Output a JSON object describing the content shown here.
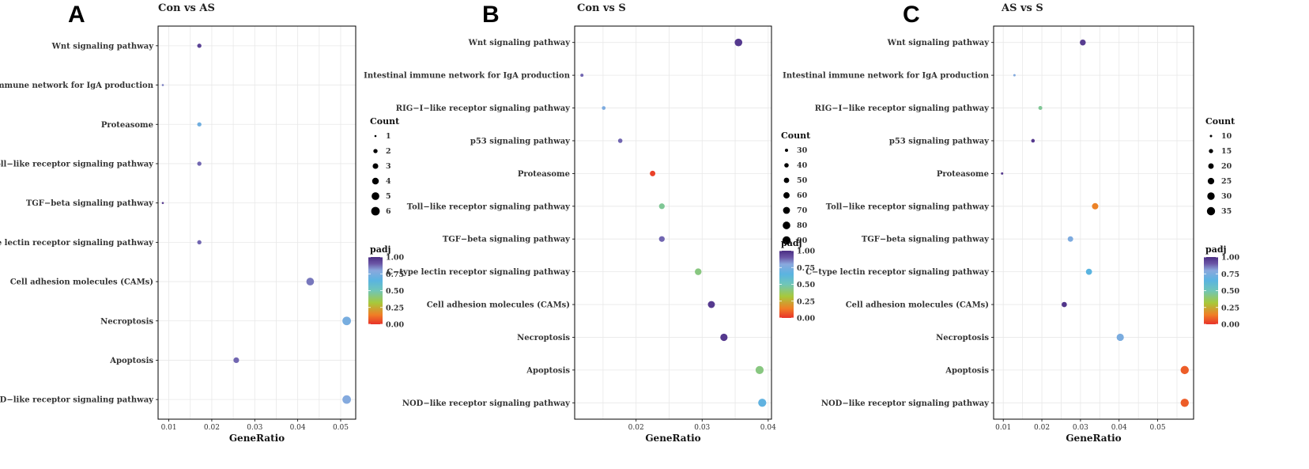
{
  "colors": {
    "padj_scale": [
      "#e8322a",
      "#f07e26",
      "#a7c93b",
      "#70c6b8",
      "#5ab4e0",
      "#8aa8de",
      "#6b56a6",
      "#4b2d83"
    ],
    "grid": "#e8e8e8",
    "point_low": "#e8322a",
    "point_high": "#4b2d83"
  },
  "chart_data": [
    {
      "type": "scatter",
      "panel_label": "A",
      "title": "Con vs AS",
      "xlabel": "GeneRatio",
      "ylabel": "",
      "xlim": [
        0.0075,
        0.0535
      ],
      "xticks": [
        0.01,
        0.02,
        0.03,
        0.04,
        0.05
      ],
      "xtick_labels": [
        "0.01",
        "0.02",
        "0.03",
        "0.04",
        "0.05"
      ],
      "categories": [
        "Wnt signaling pathway",
        "Intestinal immune network for IgA production",
        "Proteasome",
        "Toll−like receptor signaling pathway",
        "TGF−beta signaling pathway",
        "C−type lectin receptor signaling pathway",
        "Cell adhesion molecules (CAMs)",
        "Necroptosis",
        "Apoptosis",
        "NOD−like receptor signaling pathway"
      ],
      "points": [
        {
          "pathway": "Wnt signaling pathway",
          "gene_ratio": 0.0171,
          "count": 2,
          "padj": 0.95
        },
        {
          "pathway": "Intestinal immune network for IgA production",
          "gene_ratio": 0.0086,
          "count": 1,
          "padj": 0.85
        },
        {
          "pathway": "Proteasome",
          "gene_ratio": 0.0171,
          "count": 2,
          "padj": 0.72
        },
        {
          "pathway": "Toll−like receptor signaling pathway",
          "gene_ratio": 0.0171,
          "count": 2,
          "padj": 0.88
        },
        {
          "pathway": "TGF−beta signaling pathway",
          "gene_ratio": 0.0086,
          "count": 1,
          "padj": 0.97
        },
        {
          "pathway": "C−type lectin receptor signaling pathway",
          "gene_ratio": 0.0171,
          "count": 2,
          "padj": 0.88
        },
        {
          "pathway": "Cell adhesion molecules (CAMs)",
          "gene_ratio": 0.0429,
          "count": 5,
          "padj": 0.86
        },
        {
          "pathway": "Necroptosis",
          "gene_ratio": 0.0514,
          "count": 6,
          "padj": 0.74
        },
        {
          "pathway": "Apoptosis",
          "gene_ratio": 0.0257,
          "count": 3,
          "padj": 0.88
        },
        {
          "pathway": "NOD−like receptor signaling pathway",
          "gene_ratio": 0.0514,
          "count": 6,
          "padj": 0.78
        }
      ],
      "size_legend": {
        "title": "Count",
        "values": [
          1,
          2,
          3,
          4,
          5,
          6
        ],
        "labels": [
          "1",
          "2",
          "3",
          "4",
          "5",
          "6"
        ]
      },
      "color_legend": {
        "title": "padj",
        "min": 0,
        "max": 1,
        "labels": [
          "1.00",
          "0.75",
          "0.50",
          "0.25",
          "0.00"
        ]
      }
    },
    {
      "type": "scatter",
      "panel_label": "B",
      "title": "Con vs S",
      "xlabel": "GeneRatio",
      "ylabel": "",
      "xlim": [
        0.0107,
        0.0405
      ],
      "xticks": [
        0.02,
        0.03,
        0.04
      ],
      "xtick_labels": [
        "0.02",
        "0.03",
        "0.04"
      ],
      "categories": [
        "Wnt signaling pathway",
        "Intestinal immune network for IgA production",
        "RIG−I−like receptor signaling pathway",
        "p53 signaling pathway",
        "Proteasome",
        "Toll−like receptor signaling pathway",
        "TGF−beta signaling pathway",
        "C−type lectin receptor signaling pathway",
        "Cell adhesion molecules (CAMs)",
        "Necroptosis",
        "Apoptosis",
        "NOD−like receptor signaling pathway"
      ],
      "points": [
        {
          "pathway": "Wnt signaling pathway",
          "gene_ratio": 0.0355,
          "count": 80,
          "padj": 0.97
        },
        {
          "pathway": "Intestinal immune network for IgA production",
          "gene_ratio": 0.0118,
          "count": 27,
          "padj": 0.88
        },
        {
          "pathway": "RIG−I−like receptor signaling pathway",
          "gene_ratio": 0.0151,
          "count": 34,
          "padj": 0.76
        },
        {
          "pathway": "p53 signaling pathway",
          "gene_ratio": 0.0176,
          "count": 40,
          "padj": 0.88
        },
        {
          "pathway": "Proteasome",
          "gene_ratio": 0.0225,
          "count": 51,
          "padj": 0.03
        },
        {
          "pathway": "Toll−like receptor signaling pathway",
          "gene_ratio": 0.0239,
          "count": 54,
          "padj": 0.45
        },
        {
          "pathway": "TGF−beta signaling pathway",
          "gene_ratio": 0.0239,
          "count": 54,
          "padj": 0.88
        },
        {
          "pathway": "C−type lectin receptor signaling pathway",
          "gene_ratio": 0.0294,
          "count": 66,
          "padj": 0.42
        },
        {
          "pathway": "Cell adhesion molecules (CAMs)",
          "gene_ratio": 0.0314,
          "count": 71,
          "padj": 0.97
        },
        {
          "pathway": "Necroptosis",
          "gene_ratio": 0.0333,
          "count": 75,
          "padj": 0.97
        },
        {
          "pathway": "Apoptosis",
          "gene_ratio": 0.0387,
          "count": 87,
          "padj": 0.42
        },
        {
          "pathway": "NOD−like receptor signaling pathway",
          "gene_ratio": 0.0391,
          "count": 88,
          "padj": 0.67
        }
      ],
      "size_legend": {
        "title": "Count",
        "values": [
          30,
          40,
          50,
          60,
          70,
          80,
          90
        ],
        "labels": [
          "30",
          "40",
          "50",
          "60",
          "70",
          "80",
          "90"
        ]
      },
      "color_legend": {
        "title": "padj",
        "min": 0,
        "max": 1,
        "labels": [
          "1.00",
          "0.75",
          "0.50",
          "0.25",
          "0.00"
        ]
      }
    },
    {
      "type": "scatter",
      "panel_label": "C",
      "title": "AS vs S",
      "xlabel": "GeneRatio",
      "ylabel": "",
      "xlim": [
        0.0075,
        0.0593
      ],
      "xticks": [
        0.01,
        0.02,
        0.03,
        0.04,
        0.05
      ],
      "xtick_labels": [
        "0.01",
        "0.02",
        "0.03",
        "0.04",
        "0.05"
      ],
      "categories": [
        "Wnt signaling pathway",
        "Intestinal immune network for IgA production",
        "RIG−I−like receptor signaling pathway",
        "p53 signaling pathway",
        "Proteasome",
        "Toll−like receptor signaling pathway",
        "TGF−beta signaling pathway",
        "C−type lectin receptor signaling pathway",
        "Cell adhesion molecules (CAMs)",
        "Necroptosis",
        "Apoptosis",
        "NOD−like receptor signaling pathway"
      ],
      "points": [
        {
          "pathway": "Wnt signaling pathway",
          "gene_ratio": 0.0306,
          "count": 22,
          "padj": 0.96
        },
        {
          "pathway": "Intestinal immune network for IgA production",
          "gene_ratio": 0.0129,
          "count": 9,
          "padj": 0.78
        },
        {
          "pathway": "RIG−I−like receptor signaling pathway",
          "gene_ratio": 0.0196,
          "count": 14,
          "padj": 0.45
        },
        {
          "pathway": "p53 signaling pathway",
          "gene_ratio": 0.0177,
          "count": 13,
          "padj": 0.97
        },
        {
          "pathway": "Proteasome",
          "gene_ratio": 0.0097,
          "count": 7,
          "padj": 0.97
        },
        {
          "pathway": "Toll−like receptor signaling pathway",
          "gene_ratio": 0.0338,
          "count": 24,
          "padj": 0.15
        },
        {
          "pathway": "TGF−beta signaling pathway",
          "gene_ratio": 0.0274,
          "count": 20,
          "padj": 0.76
        },
        {
          "pathway": "C−type lectin receptor signaling pathway",
          "gene_ratio": 0.0322,
          "count": 23,
          "padj": 0.65
        },
        {
          "pathway": "Cell adhesion molecules (CAMs)",
          "gene_ratio": 0.0258,
          "count": 19,
          "padj": 0.98
        },
        {
          "pathway": "Necroptosis",
          "gene_ratio": 0.0403,
          "count": 29,
          "padj": 0.75
        },
        {
          "pathway": "Apoptosis",
          "gene_ratio": 0.057,
          "count": 41,
          "padj": 0.08
        },
        {
          "pathway": "NOD−like receptor signaling pathway",
          "gene_ratio": 0.057,
          "count": 41,
          "padj": 0.08
        }
      ],
      "size_legend": {
        "title": "Count",
        "values": [
          10,
          15,
          20,
          25,
          30,
          35
        ],
        "labels": [
          "10",
          "15",
          "20",
          "25",
          "30",
          "35"
        ]
      },
      "color_legend": {
        "title": "padj",
        "min": 0,
        "max": 1,
        "labels": [
          "1.00",
          "0.75",
          "0.50",
          "0.25",
          "0.00"
        ]
      }
    }
  ]
}
